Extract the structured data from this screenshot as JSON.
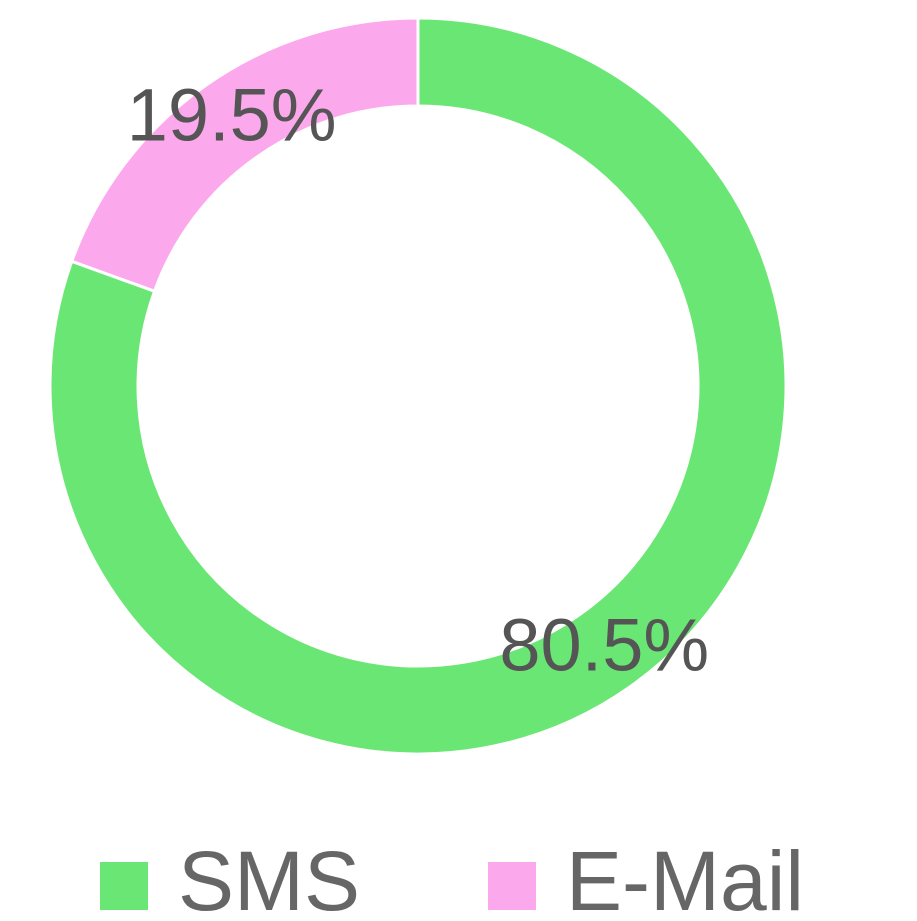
{
  "chart_data": {
    "type": "donut",
    "categories": [
      "SMS",
      "E-Mail"
    ],
    "values": [
      80.5,
      19.5
    ],
    "value_labels": [
      "80.5%",
      "19.5%"
    ],
    "colors": [
      "#6ae675",
      "#fca8ec"
    ]
  }
}
